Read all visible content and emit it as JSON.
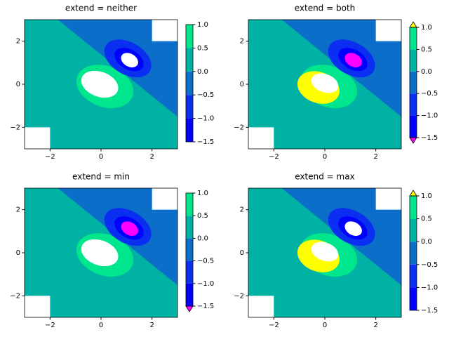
{
  "chart_data": [
    {
      "type": "contour",
      "title": "extend = neither",
      "extend": "neither",
      "levels": [
        -1.5,
        -1,
        -0.5,
        0,
        0.5,
        1
      ],
      "colors": [
        "#0000ff",
        "#0a2ff0",
        "#0b6fca",
        "#00b2a3",
        "#00e68c"
      ],
      "under_color": "#ff00ff",
      "over_color": "#ffff00",
      "xlim": [
        -3,
        3
      ],
      "ylim": [
        -3,
        3
      ],
      "xticks": [
        {
          "value": -2,
          "label": "−2"
        },
        0,
        2
      ],
      "yticks": [
        {
          "value": -2,
          "label": "−2"
        },
        0,
        2
      ],
      "cbar_ticks": [
        {
          "value": -1.5,
          "label": "−1.5"
        },
        {
          "value": -1,
          "label": "−1.0"
        },
        {
          "value": -0.5,
          "label": "−0.5"
        },
        {
          "value": 0,
          "label": "0.0"
        },
        {
          "value": 0.5,
          "label": "0.5"
        },
        {
          "value": 1,
          "label": "1.0"
        }
      ]
    },
    {
      "type": "contour",
      "title": "extend = both",
      "extend": "both",
      "levels": [
        -1.5,
        -1,
        -0.5,
        0,
        0.5,
        1
      ],
      "colors": [
        "#0000ff",
        "#0a2ff0",
        "#0b6fca",
        "#00b2a3",
        "#00e68c"
      ],
      "under_color": "#ff00ff",
      "over_color": "#ffff00",
      "xlim": [
        -3,
        3
      ],
      "ylim": [
        -3,
        3
      ],
      "xticks": [
        {
          "value": -2,
          "label": "−2"
        },
        0,
        2
      ],
      "yticks": [
        {
          "value": -2,
          "label": "−2"
        },
        0,
        2
      ],
      "cbar_ticks": [
        {
          "value": -1.5,
          "label": "−1.5"
        },
        {
          "value": -1,
          "label": "−1.0"
        },
        {
          "value": -0.5,
          "label": "−0.5"
        },
        {
          "value": 0,
          "label": "0.0"
        },
        {
          "value": 0.5,
          "label": "0.5"
        },
        {
          "value": 1,
          "label": "1.0"
        }
      ]
    },
    {
      "type": "contour",
      "title": "extend = min",
      "extend": "min",
      "levels": [
        -1.5,
        -1,
        -0.5,
        0,
        0.5,
        1
      ],
      "colors": [
        "#0000ff",
        "#0a2ff0",
        "#0b6fca",
        "#00b2a3",
        "#00e68c"
      ],
      "under_color": "#ff00ff",
      "over_color": "#ffff00",
      "xlim": [
        -3,
        3
      ],
      "ylim": [
        -3,
        3
      ],
      "xticks": [
        {
          "value": -2,
          "label": "−2"
        },
        0,
        2
      ],
      "yticks": [
        {
          "value": -2,
          "label": "−2"
        },
        0,
        2
      ],
      "cbar_ticks": [
        {
          "value": -1.5,
          "label": "−1.5"
        },
        {
          "value": -1,
          "label": "−1.0"
        },
        {
          "value": -0.5,
          "label": "−0.5"
        },
        {
          "value": 0,
          "label": "0.0"
        },
        {
          "value": 0.5,
          "label": "0.5"
        },
        {
          "value": 1,
          "label": "1.0"
        }
      ]
    },
    {
      "type": "contour",
      "title": "extend = max",
      "extend": "max",
      "levels": [
        -1.5,
        -1,
        -0.5,
        0,
        0.5,
        1
      ],
      "colors": [
        "#0000ff",
        "#0a2ff0",
        "#0b6fca",
        "#00b2a3",
        "#00e68c"
      ],
      "under_color": "#ff00ff",
      "over_color": "#ffff00",
      "xlim": [
        -3,
        3
      ],
      "ylim": [
        -3,
        3
      ],
      "xticks": [
        {
          "value": -2,
          "label": "−2"
        },
        0,
        2
      ],
      "yticks": [
        {
          "value": -2,
          "label": "−2"
        },
        0,
        2
      ],
      "cbar_ticks": [
        {
          "value": -1.5,
          "label": "−1.5"
        },
        {
          "value": -1,
          "label": "−1.0"
        },
        {
          "value": -0.5,
          "label": "−0.5"
        },
        {
          "value": 0,
          "label": "0.0"
        },
        {
          "value": 0.5,
          "label": "0.5"
        },
        {
          "value": 1,
          "label": "1.0"
        }
      ]
    }
  ]
}
